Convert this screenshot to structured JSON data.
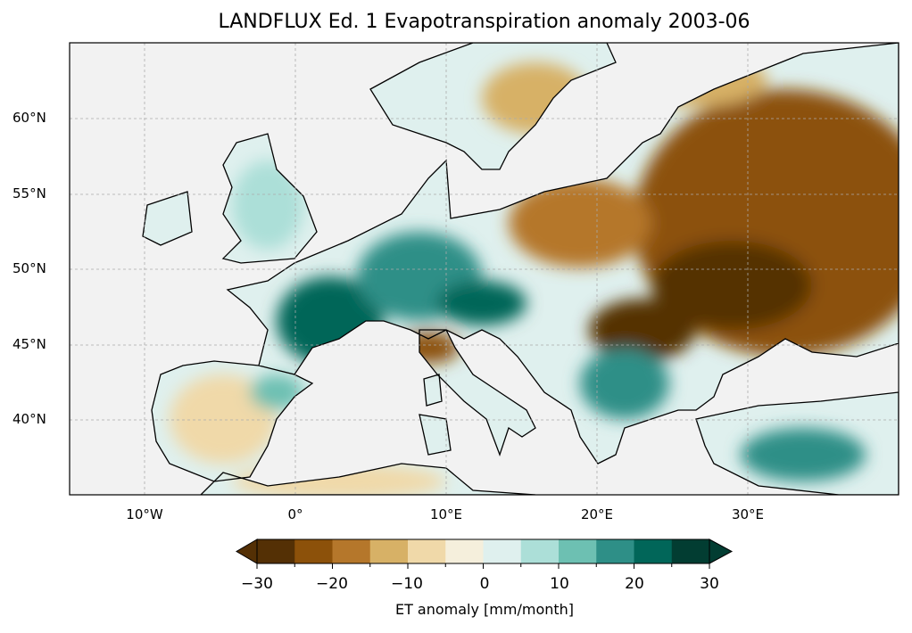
{
  "title": "LANDFLUX Ed. 1 Evapotranspiration anomaly 2003-06",
  "map": {
    "projection": "PlateCarree",
    "extent_deg": {
      "lon": [
        -15,
        40
      ],
      "lat": [
        35,
        65
      ]
    },
    "lat_ticks": [
      "60°N",
      "55°N",
      "50°N",
      "45°N",
      "40°N"
    ],
    "lon_ticks": [
      "10°W",
      "0°",
      "10°E",
      "20°E",
      "30°E"
    ],
    "ocean_color": "#f2f2f2",
    "summary": {
      "dry_regions": "Eastern Europe, Ukraine, Russia, Hungary, Po valley",
      "wet_regions": "France, Germany, Scandinavia coast, Balkans, Turkey south"
    }
  },
  "colorbar": {
    "label": "ET anomaly [mm/month]",
    "ticks": [
      "−30",
      "−20",
      "−10",
      "0",
      "10",
      "20",
      "30"
    ],
    "levels": [
      -30,
      -25,
      -20,
      -15,
      -10,
      -5,
      0,
      5,
      10,
      15,
      20,
      25,
      30
    ],
    "colors": [
      "#543005",
      "#8c510a",
      "#b5772b",
      "#d7b166",
      "#f0d9a9",
      "#f5efdc",
      "#dff0ee",
      "#acdfd8",
      "#6dc0b2",
      "#2e8f87",
      "#016659",
      "#023d32"
    ],
    "extend": "both"
  }
}
